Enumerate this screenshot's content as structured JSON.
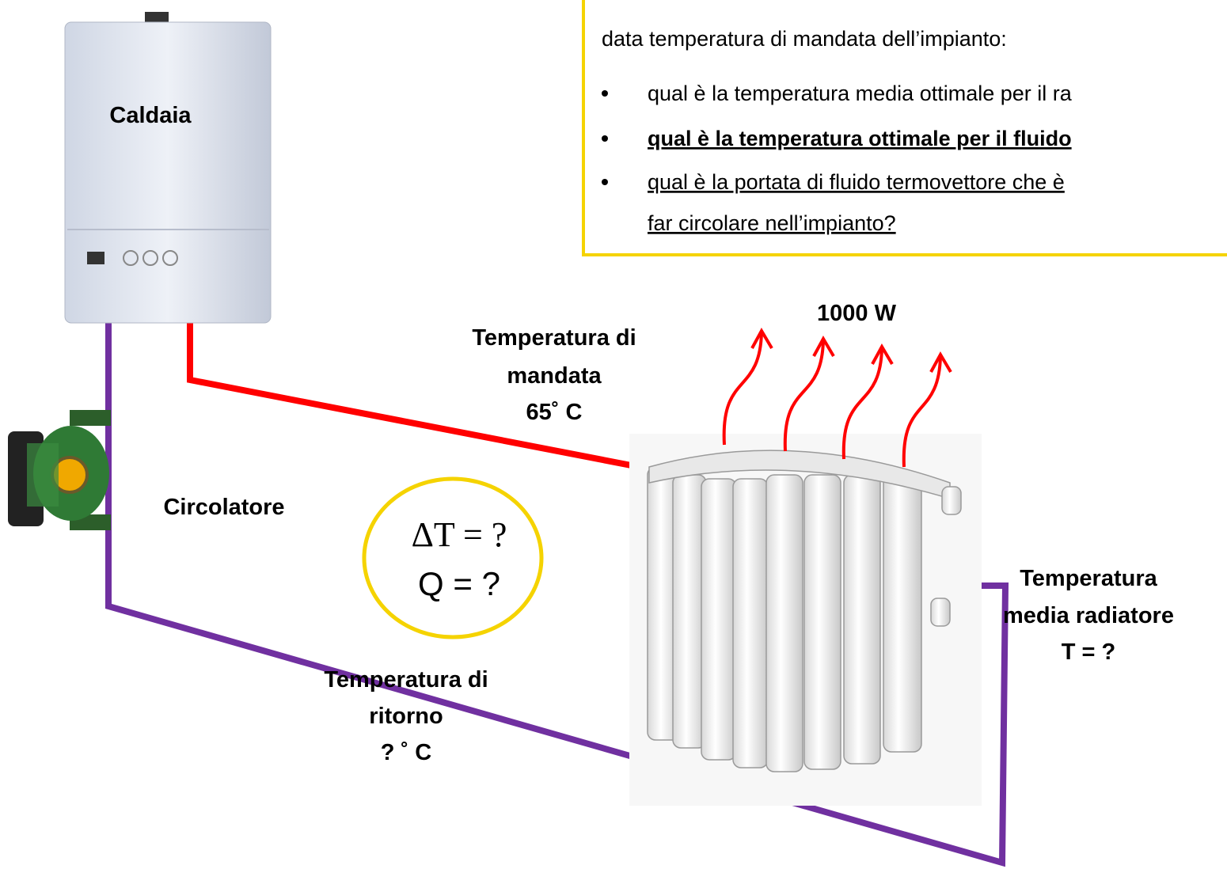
{
  "question_box": {
    "intro": "data temperatura di mandata dell’impianto:",
    "bullets": [
      "qual è la temperatura media ottimale per il ra",
      "qual è la temperatura ottimale per il fluido",
      "qual è la portata di fluido termovettore che è",
      "far circolare nell’impianto?"
    ]
  },
  "boiler": {
    "label": "Caldaia"
  },
  "pump": {
    "label": "Circolatore"
  },
  "supply": {
    "lines": [
      "Temperatura di",
      "mandata",
      "65˚ C"
    ]
  },
  "power": {
    "label": "1000 W"
  },
  "unknowns": {
    "lines": [
      "ΔT = ?",
      "Q = ?"
    ]
  },
  "radiator": {
    "lines": [
      "Temperatura",
      "media radiatore",
      "T =  ?"
    ]
  },
  "return": {
    "lines": [
      "Temperatura di",
      "ritorno",
      "? ˚ C"
    ]
  }
}
